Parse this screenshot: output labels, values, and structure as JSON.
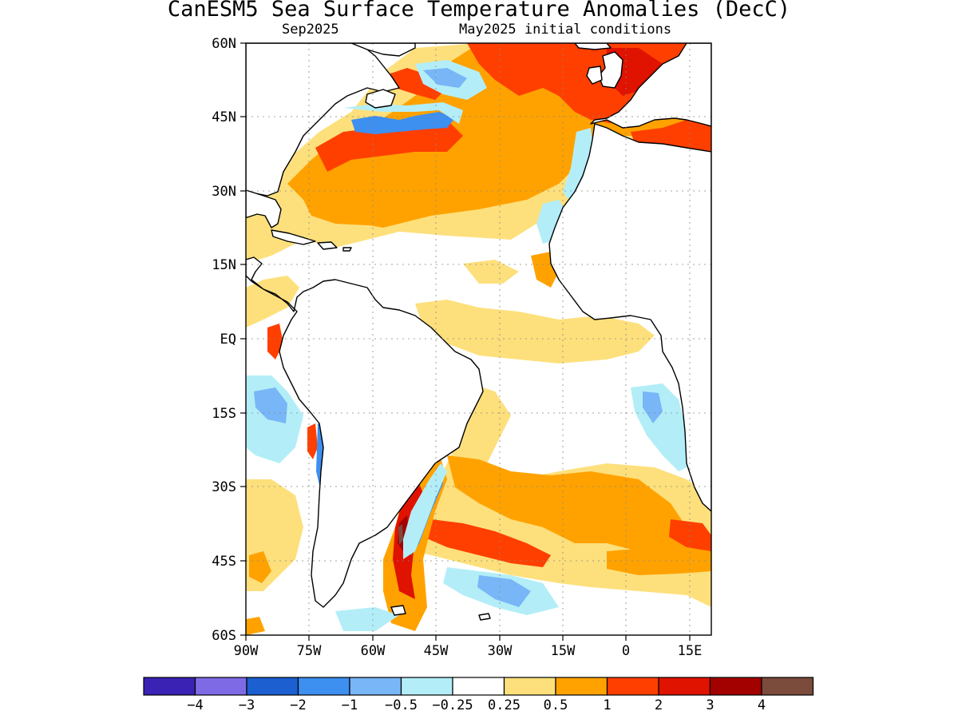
{
  "title": "CanESM5 Sea Surface Temperature Anomalies (DecC)",
  "subtitle_left": "Sep2025",
  "subtitle_right": "May2025 initial conditions",
  "lat_labels": [
    "60N",
    "45N",
    "30N",
    "15N",
    "EQ",
    "15S",
    "30S",
    "45S",
    "60S"
  ],
  "lon_labels": [
    "90W",
    "75W",
    "60W",
    "45W",
    "30W",
    "15W",
    "0",
    "15E"
  ],
  "colorbar": {
    "colors": [
      "#3a22b5",
      "#7f6ae6",
      "#1b5fd0",
      "#3d8ff0",
      "#78b6f7",
      "#b3eef8",
      "#ffffff",
      "#fde07c",
      "#ffa200",
      "#ff3f00",
      "#e01200",
      "#a30000",
      "#7b4b3c"
    ],
    "labels": [
      "−4",
      "−3",
      "−2",
      "−1",
      "−0.5",
      "−0.25",
      "0.25",
      "0.5",
      "1",
      "2",
      "3",
      "4"
    ]
  },
  "map": {
    "lon_range": [
      -90,
      20
    ],
    "lat_range": [
      -60,
      60
    ],
    "colors": {
      "land": "#ffffff",
      "neutral": "#ffffff",
      "light_yellow": "#fde07c",
      "orange": "#ffa200",
      "red_orange": "#ff3f00",
      "red": "#e01200",
      "dark_red": "#a30000",
      "brown": "#7b4b3c",
      "light_cyan": "#b3eef8",
      "light_blue": "#78b6f7",
      "blue": "#3d8ff0",
      "mid_blue": "#1b5fd0"
    }
  }
}
